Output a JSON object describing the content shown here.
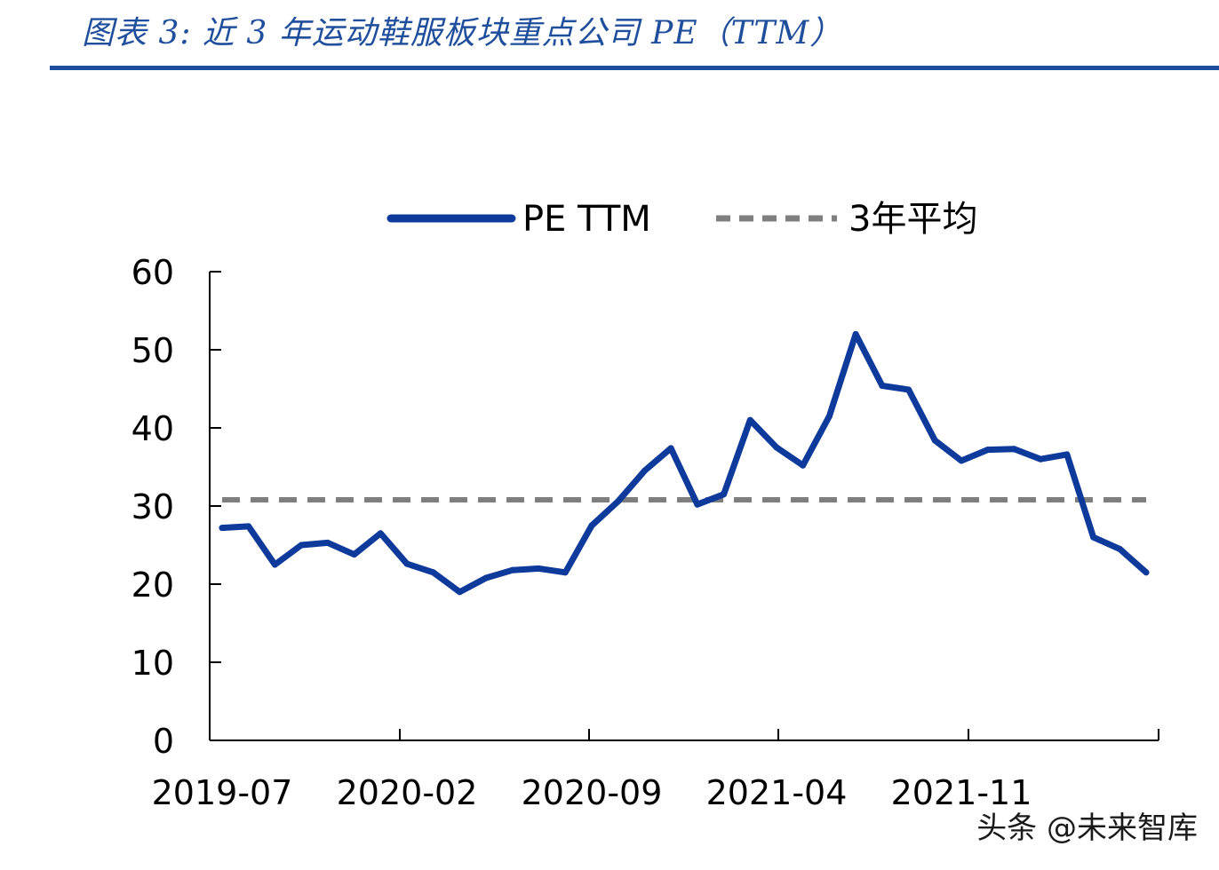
{
  "title": "图表 3:  近 3 年运动鞋服板块重点公司 PE（TTM）",
  "watermark": "头条 @未来智库",
  "colors": {
    "pe_line": "#0d3a9b",
    "avg_line": "#7f7f7f",
    "title": "#1f4e9c"
  },
  "chart_data": {
    "type": "line",
    "title": "",
    "xlabel": "",
    "ylabel": "",
    "ylim": [
      0,
      60
    ],
    "yticks": [
      0,
      10,
      20,
      30,
      40,
      50,
      60
    ],
    "xtick_labels": [
      "2019-07",
      "2020-02",
      "2020-09",
      "2021-04",
      "2021-11"
    ],
    "xtick_index": [
      0,
      7,
      14,
      21,
      28
    ],
    "legend_position": "top",
    "series": [
      {
        "name": "PE TTM",
        "style": "solid",
        "values": [
          27.2,
          27.4,
          22.5,
          25.0,
          25.3,
          23.8,
          26.5,
          22.6,
          21.5,
          19.0,
          20.8,
          21.8,
          22.0,
          21.5,
          27.5,
          30.6,
          34.5,
          37.4,
          30.2,
          31.5,
          41.0,
          37.5,
          35.2,
          41.5,
          52.0,
          45.4,
          44.9,
          38.4,
          35.8,
          37.2,
          37.3,
          36.0,
          36.6,
          26.0,
          24.5,
          21.5
        ]
      },
      {
        "name": "3年平均",
        "style": "dashed",
        "values": [
          30.8,
          30.8
        ]
      }
    ]
  }
}
